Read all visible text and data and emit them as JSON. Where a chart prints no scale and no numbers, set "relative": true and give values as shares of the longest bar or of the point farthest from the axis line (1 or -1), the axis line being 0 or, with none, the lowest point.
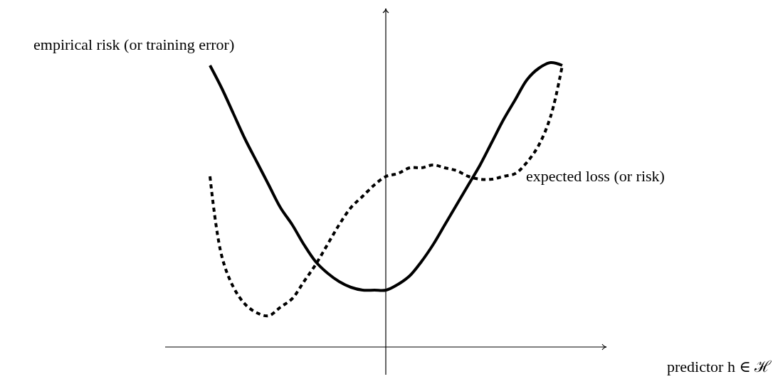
{
  "chart_data": {
    "type": "line",
    "relative": true,
    "annotations": [
      "predictor h ∈ ℋ"
    ],
    "legend": false,
    "grid": false,
    "marker": "none",
    "categories": [
      null,
      null,
      null,
      null,
      null,
      null,
      null,
      null,
      null,
      null,
      null,
      null,
      null,
      null,
      null,
      null,
      null,
      null,
      null,
      null,
      null,
      null,
      null,
      null,
      null,
      null,
      null,
      null,
      null,
      null,
      null
    ],
    "series": [
      {
        "name": "empirical risk (or training error)",
        "color": "#000000",
        "line_style": "solid",
        "values": [
          0.99,
          0.91,
          0.82,
          0.73,
          0.65,
          0.57,
          0.49,
          0.43,
          0.36,
          0.3,
          0.26,
          0.23,
          0.21,
          0.2,
          0.2,
          0.2,
          0.22,
          0.25,
          0.3,
          0.36,
          0.43,
          0.5,
          0.57,
          0.64,
          0.72,
          0.8,
          0.87,
          0.94,
          0.98,
          1.0,
          0.99
        ]
      },
      {
        "name": "expected loss (or risk)",
        "color": "#000000",
        "line_style": "dashed",
        "values": [
          0.6,
          0.32,
          0.21,
          0.15,
          0.12,
          0.11,
          0.14,
          0.17,
          0.23,
          0.29,
          0.36,
          0.43,
          0.49,
          0.53,
          0.57,
          0.6,
          0.61,
          0.63,
          0.63,
          0.64,
          0.63,
          0.62,
          0.6,
          0.59,
          0.59,
          0.6,
          0.61,
          0.65,
          0.71,
          0.81,
          0.99
        ]
      }
    ]
  }
}
